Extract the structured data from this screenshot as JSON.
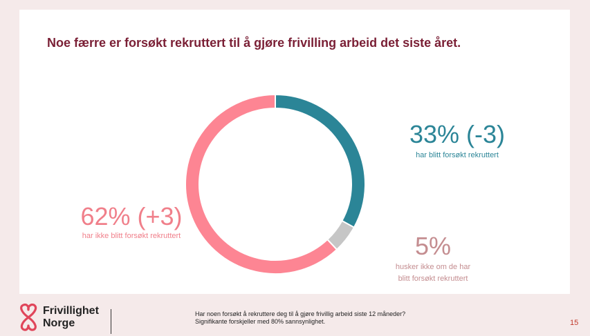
{
  "slide": {
    "title": "Noe færre er forsøkt rekruttert til å gjøre frivilling arbeid det siste året.",
    "page_number": "15"
  },
  "chart_data": {
    "type": "pie",
    "variant": "donut",
    "title": "Noe færre er forsøkt rekruttert til å gjøre frivilling arbeid det siste året.",
    "slices": [
      {
        "label": "har blitt forsøkt rekruttert",
        "value": 33,
        "value_label": "33% (-3)",
        "color": "#2b8597"
      },
      {
        "label": "husker ikke om de har blitt forsøkt rekruttert",
        "value": 5,
        "value_label": "5%",
        "color": "#c6c6c6"
      },
      {
        "label": "har ikke blitt forsøkt rekruttert",
        "value": 62,
        "value_label": "62% (+3)",
        "color": "#fd8593"
      }
    ],
    "start_angle": "top",
    "direction": "clockwise"
  },
  "callouts": {
    "teal": {
      "value": "33% (-3)",
      "label": "har blitt forsøkt rekruttert"
    },
    "pink": {
      "value": "62% (+3)",
      "label": "har ikke blitt forsøkt rekruttert"
    },
    "grey": {
      "value": "5%",
      "label_line1": "husker ikke om de har",
      "label_line2": "blitt forsøkt rekruttert"
    }
  },
  "footer": {
    "logo_line1": "Frivillighet",
    "logo_line2": "Norge",
    "logo_color": "#e0455a",
    "question": "Har noen forsøkt å rekruttere deg til å gjøre frivillig arbeid siste 12 måneder?",
    "note": "Signifikante forskjeller med 80% sannsynlighet."
  }
}
